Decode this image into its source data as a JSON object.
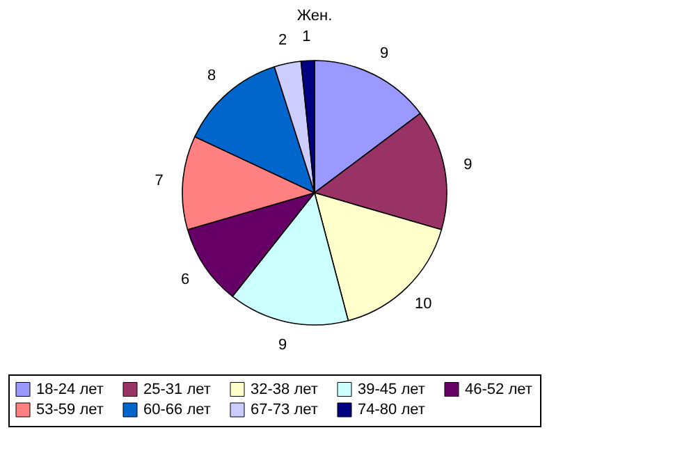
{
  "chart_data": {
    "type": "pie",
    "title": "Жен.",
    "categories": [
      "18-24 лет",
      "25-31 лет",
      "32-38 лет",
      "39-45 лет",
      "46-52 лет",
      "53-59 лет",
      "60-66 лет",
      "67-73 лет",
      "74-80 лет"
    ],
    "values": [
      9,
      9,
      10,
      9,
      6,
      7,
      8,
      2,
      1
    ],
    "colors": [
      "#9999ff",
      "#993366",
      "#ffffcc",
      "#ccffff",
      "#660066",
      "#ff8080",
      "#0066cc",
      "#ccccff",
      "#000080"
    ],
    "data_labels": true,
    "legend": "bottom"
  }
}
